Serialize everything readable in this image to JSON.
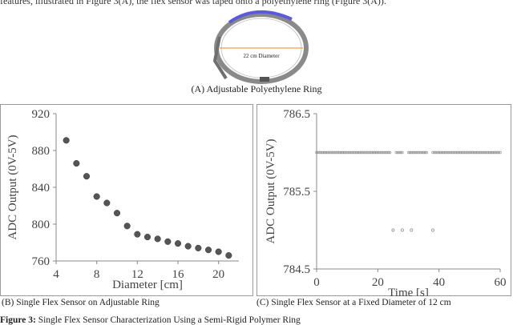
{
  "header_fragment": "features, illustrated in Figure 3(A), the flex sensor was taped onto a polyethylene ring (Figure 3(A)).",
  "ring_image": {
    "diameter_label": "22 cm Diameter"
  },
  "captions": {
    "a": "(A) Adjustable Polyethylene Ring",
    "b": "(B) Single Flex Sensor on Adjustable Ring",
    "c": "(C) Single Flex Sensor at a Fixed Diameter of 12 cm",
    "figure_label": "Figure 3:",
    "figure_text": " Single Flex Sensor Characterization Using a Semi-Rigid Polymer Ring"
  },
  "colors": {
    "marker": "#555555",
    "axis": "#888888",
    "ring": "#8a8a8a",
    "diameter_line": "#e8891e",
    "sensor": "#5a5adb"
  },
  "chart_data": [
    {
      "type": "scatter",
      "xlabel": "Diameter [cm]",
      "ylabel": "ADC Output (0V-5V)",
      "xlim": [
        4,
        22
      ],
      "ylim": [
        760,
        920
      ],
      "xticks": [
        4,
        8,
        12,
        16,
        20
      ],
      "yticks": [
        760,
        800,
        840,
        880,
        920
      ],
      "points": [
        {
          "x": 5,
          "y": 891
        },
        {
          "x": 6,
          "y": 866
        },
        {
          "x": 7,
          "y": 852
        },
        {
          "x": 8,
          "y": 830
        },
        {
          "x": 9,
          "y": 823
        },
        {
          "x": 10,
          "y": 812
        },
        {
          "x": 11,
          "y": 798
        },
        {
          "x": 12,
          "y": 789
        },
        {
          "x": 13,
          "y": 786
        },
        {
          "x": 14,
          "y": 784
        },
        {
          "x": 15,
          "y": 781
        },
        {
          "x": 16,
          "y": 779
        },
        {
          "x": 17,
          "y": 776
        },
        {
          "x": 18,
          "y": 774
        },
        {
          "x": 19,
          "y": 772
        },
        {
          "x": 20,
          "y": 770
        },
        {
          "x": 21,
          "y": 766
        }
      ]
    },
    {
      "type": "scatter",
      "xlabel": "Time [s]",
      "ylabel": "ADC Output (0V-5V)",
      "xlim": [
        0,
        60
      ],
      "ylim": [
        784.5,
        786.5
      ],
      "xticks": [
        0,
        20,
        40,
        60
      ],
      "yticks": [
        784.5,
        785.5,
        786.5
      ],
      "baseline_value": 786,
      "baseline_range": [
        0,
        60
      ],
      "baseline_step": 0.5,
      "baseline_gaps": [
        25,
        29,
        37
      ],
      "outliers": [
        {
          "x": 25,
          "y": 785
        },
        {
          "x": 28,
          "y": 785
        },
        {
          "x": 31,
          "y": 785
        },
        {
          "x": 38,
          "y": 785
        }
      ]
    }
  ]
}
